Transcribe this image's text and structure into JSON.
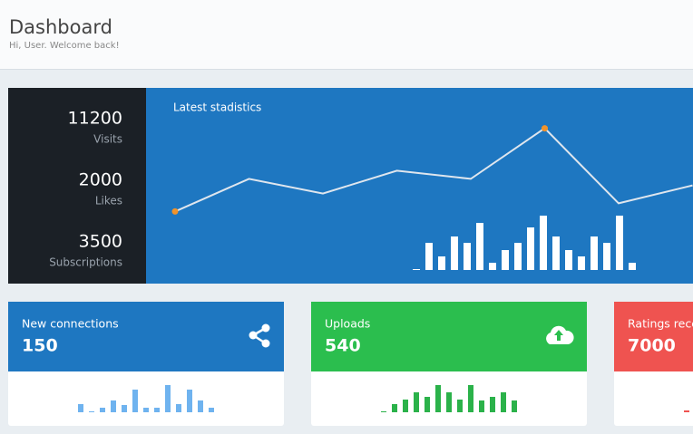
{
  "header": {
    "title": "Dashboard",
    "subtitle": "Hi, User. Welcome back!"
  },
  "stats": [
    {
      "value": 11200,
      "label": "Visits"
    },
    {
      "value": 2000,
      "label": "Likes"
    },
    {
      "value": 3500,
      "label": "Subscriptions"
    }
  ],
  "chart_data": [
    {
      "type": "line",
      "title": "Latest stadistics",
      "values": [
        37,
        57,
        48,
        62,
        57,
        88,
        42,
        53
      ],
      "ylim": [
        0,
        100
      ],
      "color": "#dfe6ee",
      "highlight_points": [
        0,
        5
      ],
      "highlight_color": "#f0932b"
    },
    {
      "type": "bar",
      "values": [
        1,
        30,
        15,
        37,
        30,
        52,
        8,
        22,
        30,
        47,
        60,
        37,
        22,
        15,
        37,
        30,
        60,
        8
      ],
      "ylim": [
        0,
        60
      ],
      "color": "#ffffff"
    }
  ],
  "cards": [
    {
      "title": "New connections",
      "value": 150,
      "color": "#1e77c1",
      "bar_color": "#6fb3ef",
      "bars": {
        "type": "bar",
        "values": [
          9,
          1,
          5,
          13,
          8,
          25,
          5,
          5,
          30,
          9,
          25,
          13,
          5
        ],
        "ylim": [
          0,
          30
        ]
      }
    },
    {
      "title": "Uploads",
      "value": 540,
      "color": "#2bbe4e",
      "bar_color": "#2bb24a",
      "bars": {
        "type": "bar",
        "values": [
          1,
          9,
          14,
          22,
          17,
          30,
          22,
          14,
          30,
          13,
          17,
          22,
          13
        ],
        "ylim": [
          0,
          30
        ]
      }
    },
    {
      "title": "Ratings received",
      "value": 7000,
      "color": "#ef5350",
      "bar_color": "#ef5350",
      "bars": {
        "type": "bar",
        "values": [
          2
        ],
        "ylim": [
          0,
          30
        ]
      }
    }
  ]
}
